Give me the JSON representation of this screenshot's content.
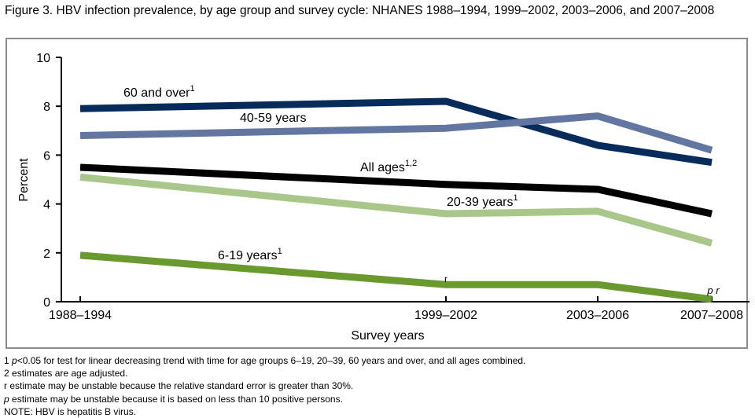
{
  "title": "Figure 3. HBV infection prevalence, by age group and survey cycle: NHANES 1988–1994, 1999–2002, 2003–2006, and 2007–2008",
  "chart_data": {
    "type": "line",
    "title": "Figure 3. HBV infection prevalence, by age group and survey cycle: NHANES 1988–1994, 1999–2002, 2003–2006, and 2007–2008",
    "xlabel": "Survey years",
    "ylabel": "Percent",
    "categories": [
      "1988–1994",
      "1999–2002",
      "2003–2006",
      "2007–2008"
    ],
    "ylim": [
      0,
      10
    ],
    "yticks": [
      0,
      2,
      4,
      6,
      8,
      10
    ],
    "grid": false,
    "series": [
      {
        "name": "60 and over",
        "sup": "1",
        "color": "#072c5c",
        "values": [
          7.9,
          8.2,
          6.4,
          5.7
        ]
      },
      {
        "name": "40-59 years",
        "sup": "",
        "color": "#6276a1",
        "values": [
          6.8,
          7.1,
          7.6,
          6.2
        ]
      },
      {
        "name": "All ages",
        "sup": "1,2",
        "color": "#000000",
        "values": [
          5.5,
          4.8,
          4.6,
          3.6
        ]
      },
      {
        "name": "20-39 years",
        "sup": "1",
        "color": "#aac78b",
        "values": [
          5.1,
          3.6,
          3.7,
          2.4
        ]
      },
      {
        "name": "6-19 years",
        "sup": "1",
        "color": "#6a9a2f",
        "values": [
          1.9,
          0.7,
          0.7,
          0.1
        ]
      }
    ],
    "annotations": [
      {
        "series": "6-19 years",
        "category": "1999–2002",
        "text": "r"
      },
      {
        "series": "6-19 years",
        "category": "2007–2008",
        "text": "p r"
      }
    ]
  },
  "notes": [
    {
      "mark": "1",
      "italic": "p",
      "text": "<0.05 for test for linear decreasing trend with time for age groups 6–19, 20–39, 60 years and over, and all ages combined."
    },
    {
      "mark": "2",
      "italic": "",
      "text": "estimates are age adjusted."
    },
    {
      "mark": "r",
      "italic": "",
      "text": "estimate may be unstable because the relative standard error is greater than 30%."
    },
    {
      "mark": "",
      "italic": "p",
      "text": " estimate may be unstable because it is based on less than 10 positive persons."
    },
    {
      "mark": "",
      "italic": "",
      "text": "NOTE: HBV is hepatitis B virus."
    }
  ]
}
